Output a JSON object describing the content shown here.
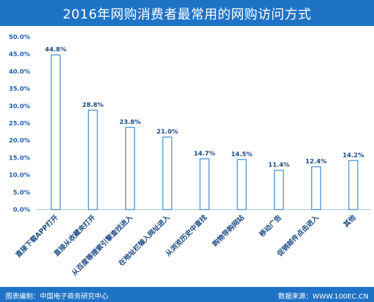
{
  "header": {
    "title": "2016年网购消费者最常用的网购访问方式"
  },
  "footer": {
    "left": "图表编制：中国电子商务研究中心",
    "right": "数据来源：WWW.100EC.CN"
  },
  "colors": {
    "header_bg": "#1f73c6",
    "bar_fill": "#ffffff",
    "bar_stroke": "#5b9bd5"
  },
  "chart_data": {
    "type": "bar",
    "title": "2016年网购消费者最常用的网购访问方式",
    "categories": [
      "直接下载APP打开",
      "直接从收藏夹打开",
      "从百度等搜索引擎查找进入",
      "在地址栏输入网址进入",
      "从浏览历史中查找",
      "购物导购网站",
      "移动广告",
      "促销邮件点击进入",
      "其他"
    ],
    "values": [
      44.8,
      28.8,
      23.8,
      21.0,
      14.7,
      14.5,
      11.4,
      12.4,
      14.2
    ],
    "data_labels": [
      "44.8%",
      "28.8%",
      "23.8%",
      "21.0%",
      "14.7%",
      "14.5%",
      "11.4%",
      "12.4%",
      "14.2%"
    ],
    "y_ticks": [
      "0.0%",
      "5.0%",
      "10.0%",
      "15.0%",
      "20.0%",
      "25.0%",
      "30.0%",
      "35.0%",
      "40.0%",
      "45.0%",
      "50.0%"
    ],
    "ylim": [
      0,
      50
    ],
    "grid": false,
    "legend": "none"
  }
}
